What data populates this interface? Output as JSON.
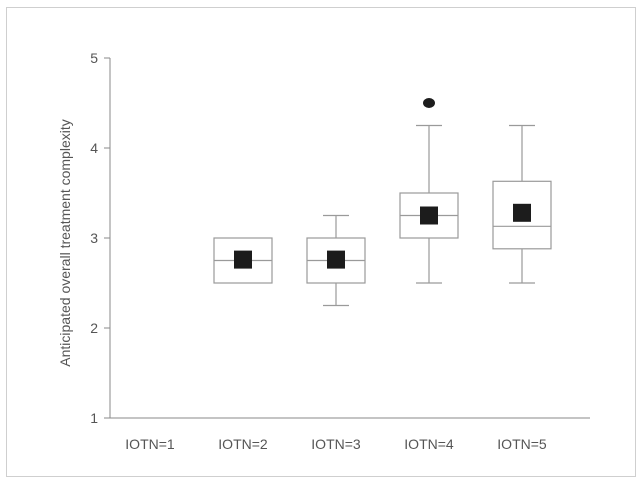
{
  "chart_data": {
    "type": "boxplot",
    "title": "",
    "xlabel": "",
    "ylabel": "Anticipated overall treatment complexity",
    "ylim": [
      1,
      5
    ],
    "yticks": [
      1,
      2,
      3,
      4,
      5
    ],
    "categories": [
      "IOTN=1",
      "IOTN=2",
      "IOTN=3",
      "IOTN=4",
      "IOTN=5"
    ],
    "boxes": [
      null,
      {
        "min": 2.5,
        "q1": 2.5,
        "median": 2.75,
        "q3": 3.0,
        "max": 3.0,
        "mean": 2.76,
        "outliers": []
      },
      {
        "min": 2.25,
        "q1": 2.5,
        "median": 2.75,
        "q3": 3.0,
        "max": 3.25,
        "mean": 2.76,
        "outliers": []
      },
      {
        "min": 2.5,
        "q1": 3.0,
        "median": 3.25,
        "q3": 3.5,
        "max": 4.25,
        "mean": 3.25,
        "outliers": [
          4.5
        ]
      },
      {
        "min": 2.5,
        "q1": 2.88,
        "median": 3.13,
        "q3": 3.63,
        "max": 4.25,
        "mean": 3.28,
        "outliers": []
      }
    ],
    "grid": false,
    "colors": {
      "box_stroke": "#9a9a9a",
      "mean_marker": "#1c1c1c",
      "axis": "#8a8a8a",
      "text": "#555555"
    }
  }
}
